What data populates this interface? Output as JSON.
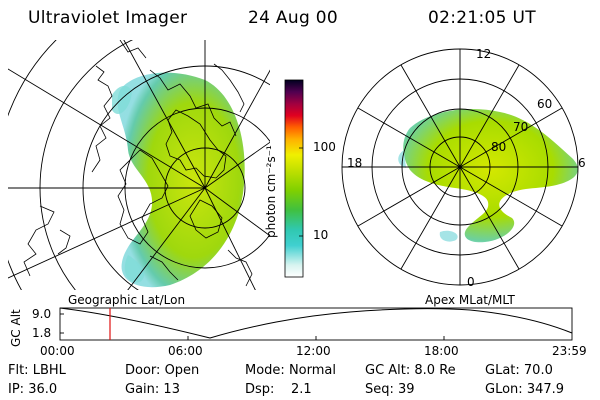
{
  "header": {
    "title": "Ultraviolet Imager",
    "date": "24 Aug 00",
    "time": "02:21:05 UT"
  },
  "colorbar": {
    "unit_label": "photon cm⁻²s⁻¹",
    "ticks": [
      "100",
      "10"
    ]
  },
  "left_map": {
    "caption": "Geographic Lat/Lon"
  },
  "right_map": {
    "caption": "Apex MLat/MLT",
    "mlt_labels": [
      "12",
      "18",
      "6",
      "0"
    ],
    "lat_labels": [
      "60",
      "70",
      "80"
    ]
  },
  "altitude_plot": {
    "ylabel": "GC Alt",
    "yticks": [
      "9.0",
      "1.8"
    ],
    "xticks": [
      "00:00",
      "06:00",
      "12:00",
      "18:00",
      "23:59"
    ],
    "marker_time": "02:21"
  },
  "status": {
    "rows": [
      [
        {
          "label": "Flt:",
          "value": "LBHL"
        },
        {
          "label": "Door:",
          "value": "Open"
        },
        {
          "label": "Mode:",
          "value": "Normal"
        },
        {
          "label": "GC Alt:",
          "value": "8.0 Re"
        },
        {
          "label": "GLat:",
          "value": "70.0"
        }
      ],
      [
        {
          "label": "IP:",
          "value": "36.0"
        },
        {
          "label": "Gain:",
          "value": "13"
        },
        {
          "label": "Dsp:",
          "value": "2.1"
        },
        {
          "label": "Seq:",
          "value": "39"
        },
        {
          "label": "GLon:",
          "value": "347.9"
        }
      ]
    ]
  },
  "colors": {
    "aurora_bright": "#d8e800",
    "aurora_mid": "#8fd400",
    "aurora_low": "#5ccfc4",
    "marker": "#e01010"
  }
}
